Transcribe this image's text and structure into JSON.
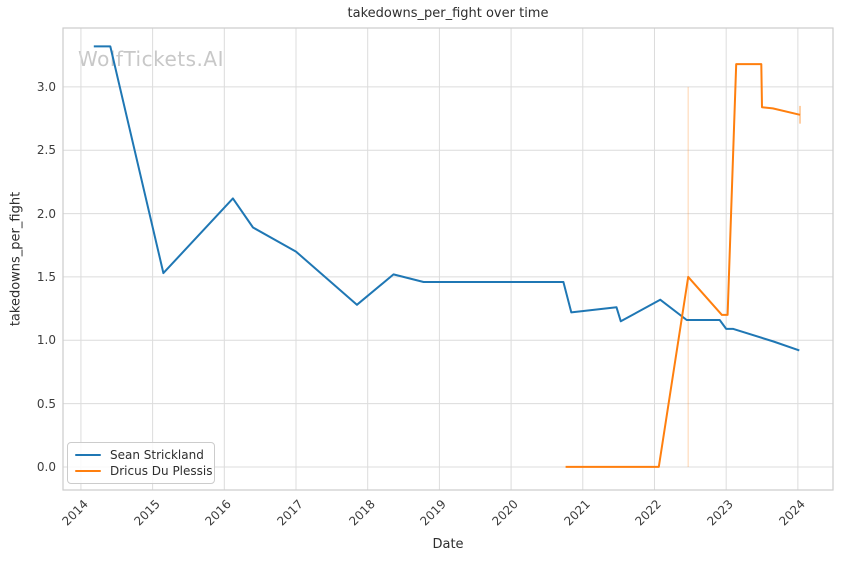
{
  "chart_data": {
    "type": "line",
    "title": "takedowns_per_fight over time",
    "xlabel": "Date",
    "ylabel": "takedowns_per_fight",
    "watermark": "WolfTickets.AI",
    "grid": true,
    "legend_position": "lower-left",
    "xlim": [
      2013.75,
      2024.49
    ],
    "ylim": [
      -0.182,
      3.465
    ],
    "x_ticks": [
      2014,
      2015,
      2016,
      2017,
      2018,
      2019,
      2020,
      2021,
      2022,
      2023,
      2024
    ],
    "y_ticks": [
      0.0,
      0.5,
      1.0,
      1.5,
      2.0,
      2.5,
      3.0
    ],
    "y_tick_labels": [
      "0.0",
      "0.5",
      "1.0",
      "1.5",
      "2.0",
      "2.5",
      "3.0"
    ],
    "series": [
      {
        "name": "Sean Strickland",
        "color": "#1f77b4",
        "x": [
          2014.18,
          2014.41,
          2015.15,
          2016.12,
          2016.4,
          2017.0,
          2017.85,
          2018.36,
          2018.78,
          2020.73,
          2020.84,
          2021.47,
          2021.53,
          2022.08,
          2022.45,
          2022.91,
          2023.0,
          2023.1,
          2023.66,
          2024.02
        ],
        "y": [
          3.32,
          3.32,
          1.53,
          2.12,
          1.89,
          1.7,
          1.28,
          1.52,
          1.46,
          1.46,
          1.22,
          1.26,
          1.15,
          1.32,
          1.16,
          1.16,
          1.09,
          1.09,
          0.99,
          0.92
        ]
      },
      {
        "name": "Dricus Du Plessis",
        "color": "#ff7f0e",
        "x": [
          2020.76,
          2022.06,
          2022.47,
          2022.94,
          2023.02,
          2023.14,
          2023.49,
          2023.5,
          2023.65,
          2024.03
        ],
        "y": [
          0.0,
          0.0,
          1.5,
          1.2,
          1.2,
          3.18,
          3.18,
          2.84,
          2.83,
          2.78
        ]
      }
    ],
    "annotations": [
      {
        "type": "vline",
        "x": 2022.47,
        "y_from": 0.0,
        "y_to": 3.0,
        "color": "#ff7f0e",
        "opacity": 0.28,
        "width": 1.2
      },
      {
        "type": "vline",
        "x": 2024.03,
        "y_from": 2.71,
        "y_to": 2.85,
        "color": "#ff7f0e",
        "opacity": 0.5,
        "width": 1.5
      }
    ],
    "style": {
      "grid_color": "#dcdcdc",
      "spine_color": "#cccccc",
      "line_width": 2
    }
  }
}
